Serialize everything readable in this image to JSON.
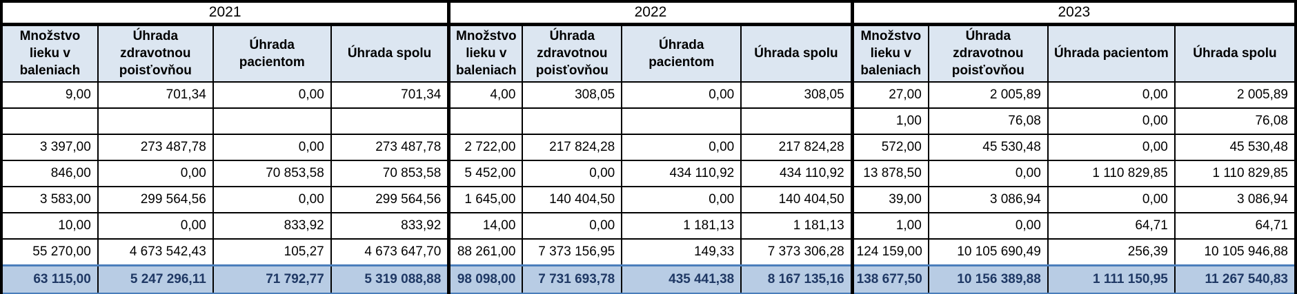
{
  "table": {
    "years": [
      "2021",
      "2022",
      "2023"
    ],
    "column_headers": [
      "Množstvo lieku v baleniach",
      "Úhrada zdravotnou poisťovňou",
      "Úhrada pacientom",
      "Úhrada spolu"
    ],
    "rows": [
      [
        "9,00",
        "701,34",
        "0,00",
        "701,34",
        "4,00",
        "308,05",
        "0,00",
        "308,05",
        "27,00",
        "2 005,89",
        "0,00",
        "2 005,89"
      ],
      [
        "",
        "",
        "",
        "",
        "",
        "",
        "",
        "",
        "1,00",
        "76,08",
        "0,00",
        "76,08"
      ],
      [
        "3 397,00",
        "273 487,78",
        "0,00",
        "273 487,78",
        "2 722,00",
        "217 824,28",
        "0,00",
        "217 824,28",
        "572,00",
        "45 530,48",
        "0,00",
        "45 530,48"
      ],
      [
        "846,00",
        "0,00",
        "70 853,58",
        "70 853,58",
        "5 452,00",
        "0,00",
        "434 110,92",
        "434 110,92",
        "13 878,50",
        "0,00",
        "1 110 829,85",
        "1 110 829,85"
      ],
      [
        "3 583,00",
        "299 564,56",
        "0,00",
        "299 564,56",
        "1 645,00",
        "140 404,50",
        "0,00",
        "140 404,50",
        "39,00",
        "3 086,94",
        "0,00",
        "3 086,94"
      ],
      [
        "10,00",
        "0,00",
        "833,92",
        "833,92",
        "14,00",
        "0,00",
        "1 181,13",
        "1 181,13",
        "1,00",
        "0,00",
        "64,71",
        "64,71"
      ],
      [
        "55 270,00",
        "4 673 542,43",
        "105,27",
        "4 673 647,70",
        "88 261,00",
        "7 373 156,95",
        "149,33",
        "7 373 306,28",
        "124 159,00",
        "10 105 690,49",
        "256,39",
        "10 105 946,88"
      ]
    ],
    "total_row": [
      "63 115,00",
      "5 247 296,11",
      "71 792,77",
      "5 319 088,88",
      "98 098,00",
      "7 731 693,78",
      "435 441,38",
      "8 167 135,16",
      "138 677,50",
      "10 156 389,88",
      "1 111 150,95",
      "11 267 540,83"
    ]
  },
  "colors": {
    "header_fill": "#dce6f1",
    "total_fill": "#b8cce4",
    "total_text": "#1f3864",
    "total_border": "#4a7ebb",
    "grid": "#000000"
  }
}
